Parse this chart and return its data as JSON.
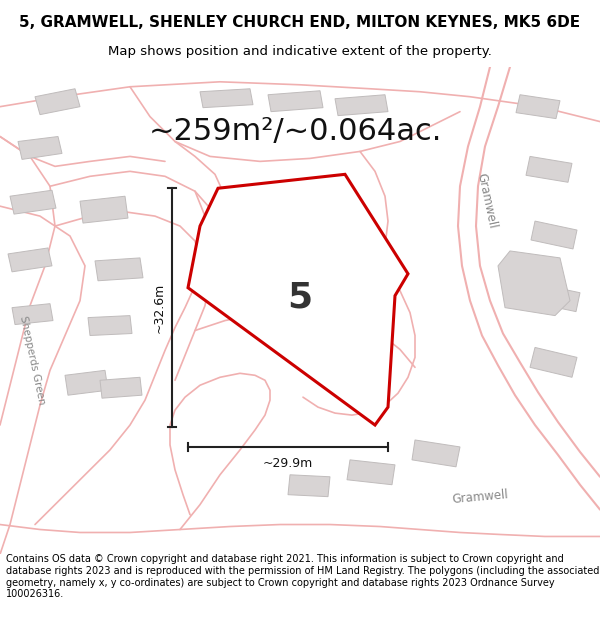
{
  "title": "5, GRAMWELL, SHENLEY CHURCH END, MILTON KEYNES, MK5 6DE",
  "subtitle": "Map shows position and indicative extent of the property.",
  "area_text": "~259m²/~0.064ac.",
  "plot_number": "5",
  "dim1_text": "~32.6m",
  "dim2_text": "~29.9m",
  "footer": "Contains OS data © Crown copyright and database right 2021. This information is subject to Crown copyright and database rights 2023 and is reproduced with the permission of HM Land Registry. The polygons (including the associated geometry, namely x, y co-ordinates) are subject to Crown copyright and database rights 2023 Ordnance Survey 100026316.",
  "map_bg": "#f0eeee",
  "road_color": "#f0b0b0",
  "plot_fill": "#ffffff",
  "plot_stroke": "#cc0000",
  "building_fill": "#d8d4d4",
  "building_edge": "#c0bcbc",
  "title_fontsize": 11,
  "subtitle_fontsize": 9.5,
  "area_fontsize": 22,
  "footer_fontsize": 7.0,
  "road_lw": 1.2,
  "dim_lw": 1.5,
  "plot_lw": 2.2
}
